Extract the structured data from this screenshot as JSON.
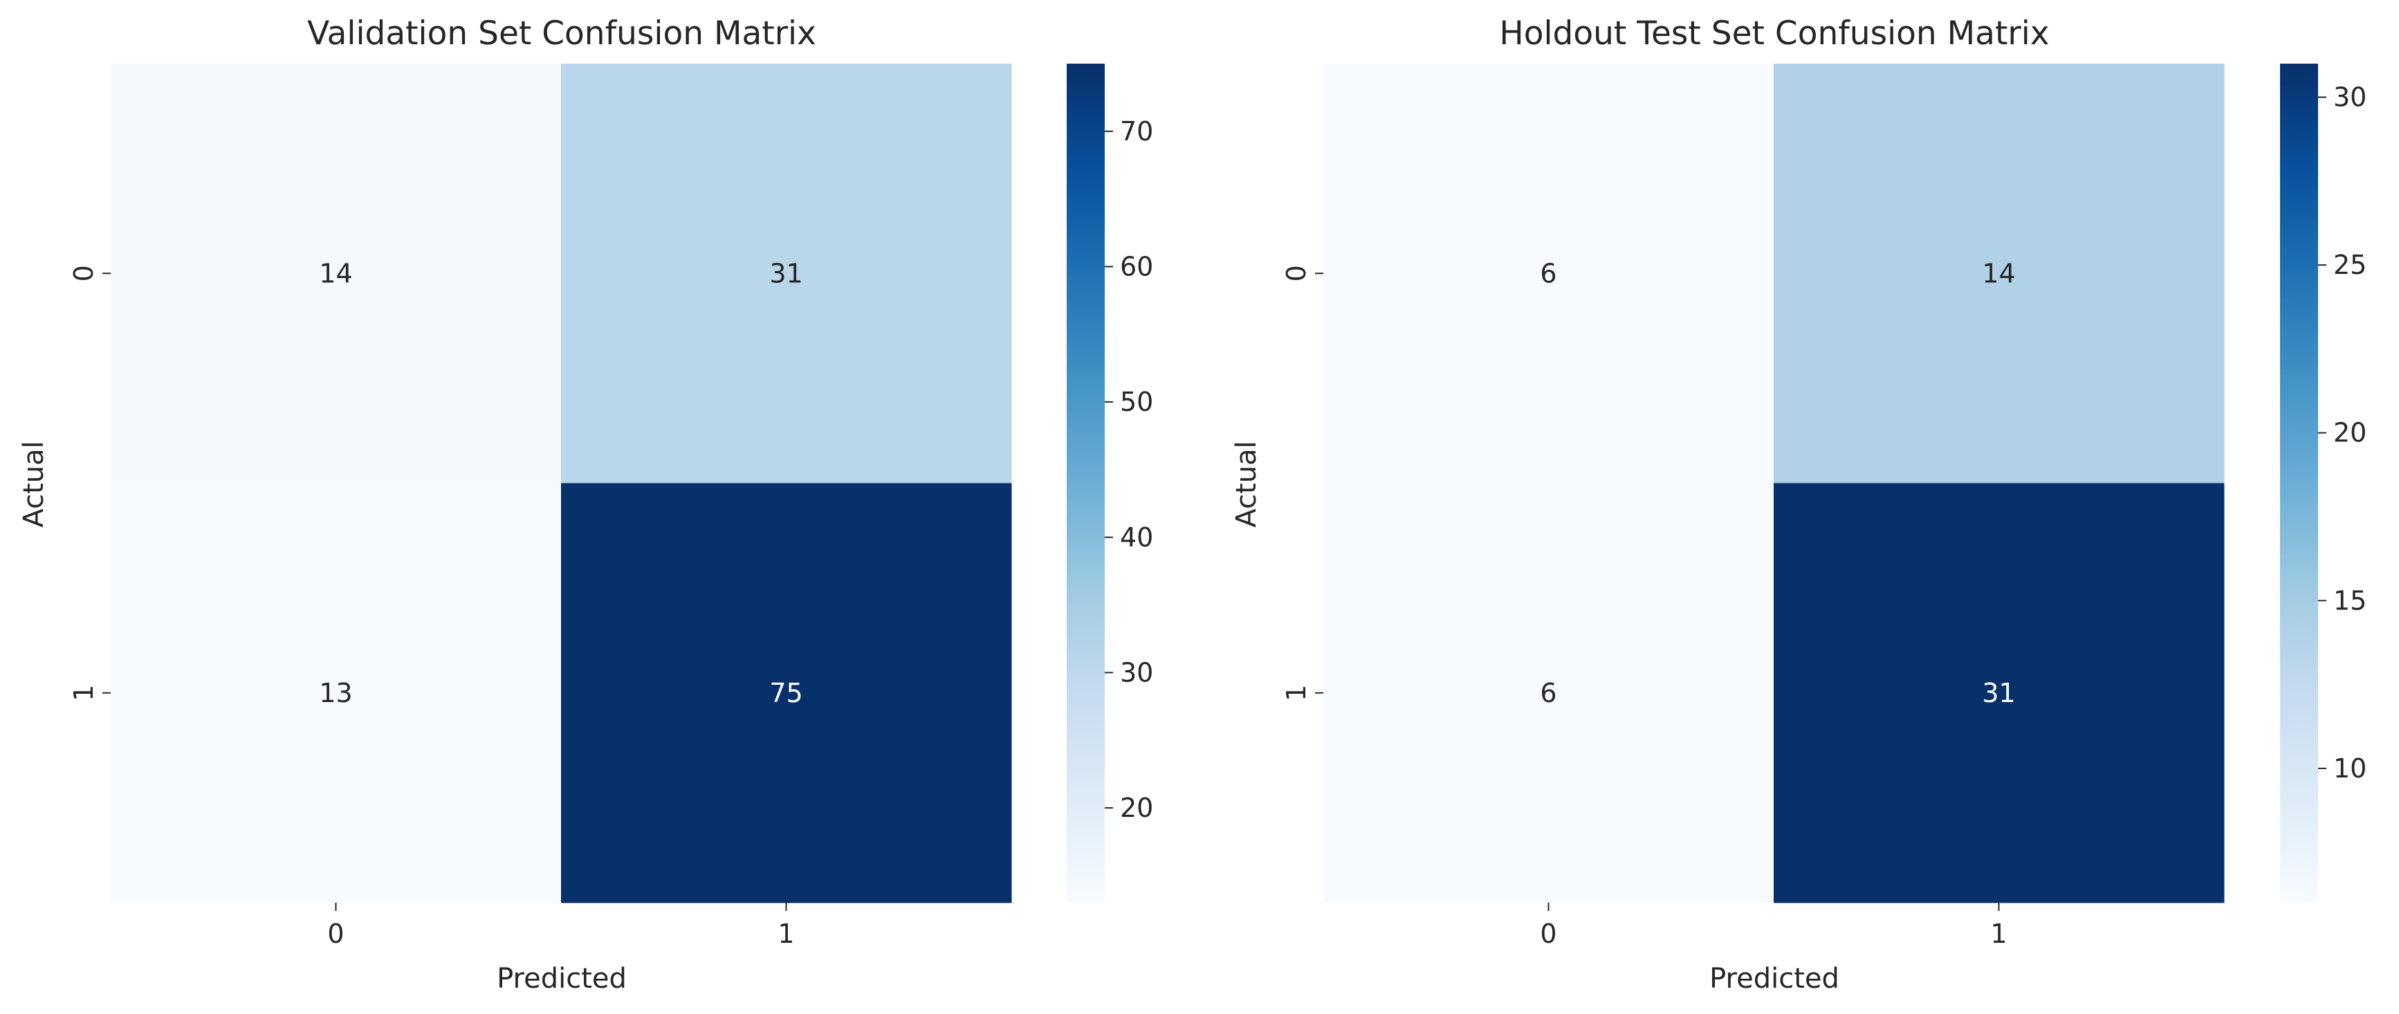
{
  "chart_data": [
    {
      "type": "heatmap",
      "title": "Validation Set Confusion Matrix",
      "xlabel": "Predicted",
      "ylabel": "Actual",
      "x_categories": [
        "0",
        "1"
      ],
      "y_categories": [
        "0",
        "1"
      ],
      "matrix": [
        [
          14,
          31
        ],
        [
          13,
          75
        ]
      ],
      "colormap": "Blues",
      "vmin": 13,
      "vmax": 75,
      "colorbar_ticks": [
        20,
        30,
        40,
        50,
        60,
        70
      ],
      "annotations": true,
      "grid": false
    },
    {
      "type": "heatmap",
      "title": "Holdout Test Set Confusion Matrix",
      "xlabel": "Predicted",
      "ylabel": "Actual",
      "x_categories": [
        "0",
        "1"
      ],
      "y_categories": [
        "0",
        "1"
      ],
      "matrix": [
        [
          6,
          14
        ],
        [
          6,
          31
        ]
      ],
      "colormap": "Blues",
      "vmin": 6,
      "vmax": 31,
      "colorbar_ticks": [
        10,
        15,
        20,
        25,
        30
      ],
      "annotations": true,
      "grid": false
    }
  ]
}
